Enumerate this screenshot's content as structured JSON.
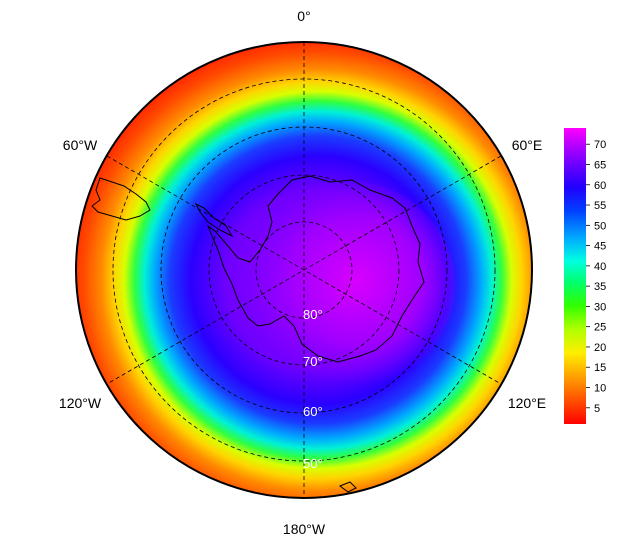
{
  "map": {
    "longitude_labels": {
      "top": "0°",
      "upper_left": "60°W",
      "upper_right": "60°E",
      "lower_left": "120°W",
      "lower_right": "120°E",
      "bottom": "180°W"
    },
    "latitude_labels": [
      "80°",
      "70°",
      "60°",
      "50°"
    ],
    "colors": {
      "land_outline": "#000000",
      "graticule": "#000000",
      "frame": "#000000"
    }
  },
  "colorbar": {
    "ticks": [
      "5",
      "10",
      "15",
      "20",
      "25",
      "30",
      "35",
      "40",
      "45",
      "50",
      "55",
      "60",
      "65",
      "70"
    ],
    "range": [
      1,
      74
    ],
    "colors": [
      "#ff0000",
      "#ff5a00",
      "#ffa000",
      "#ffe600",
      "#c8ff00",
      "#40ff00",
      "#00ff5a",
      "#00ffd0",
      "#00b4ff",
      "#0050ff",
      "#2a00ff",
      "#7a00ff",
      "#c400ff",
      "#ff00ff"
    ]
  }
}
